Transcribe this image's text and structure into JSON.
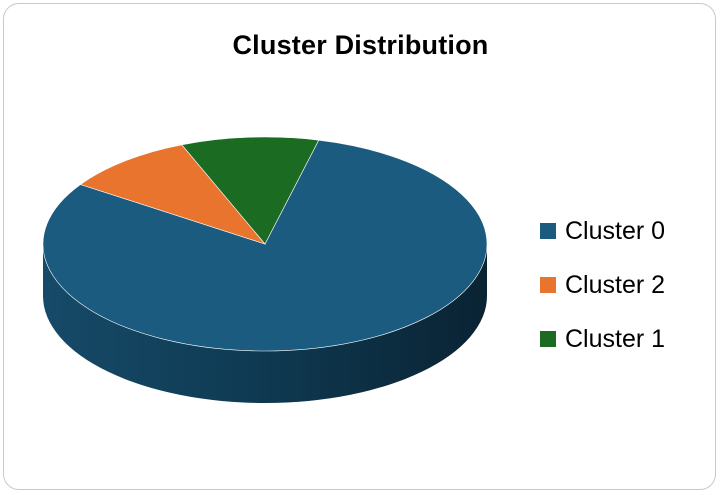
{
  "chart_data": {
    "type": "pie",
    "title": "Cluster Distribution",
    "categories": [
      "Cluster 0",
      "Cluster 2",
      "Cluster 1"
    ],
    "values": [
      80.5,
      9.5,
      10.0
    ],
    "colors": [
      "#1b5b80",
      "#e8742e",
      "#1b6b22"
    ],
    "legend_position": "right",
    "style": "3d"
  }
}
